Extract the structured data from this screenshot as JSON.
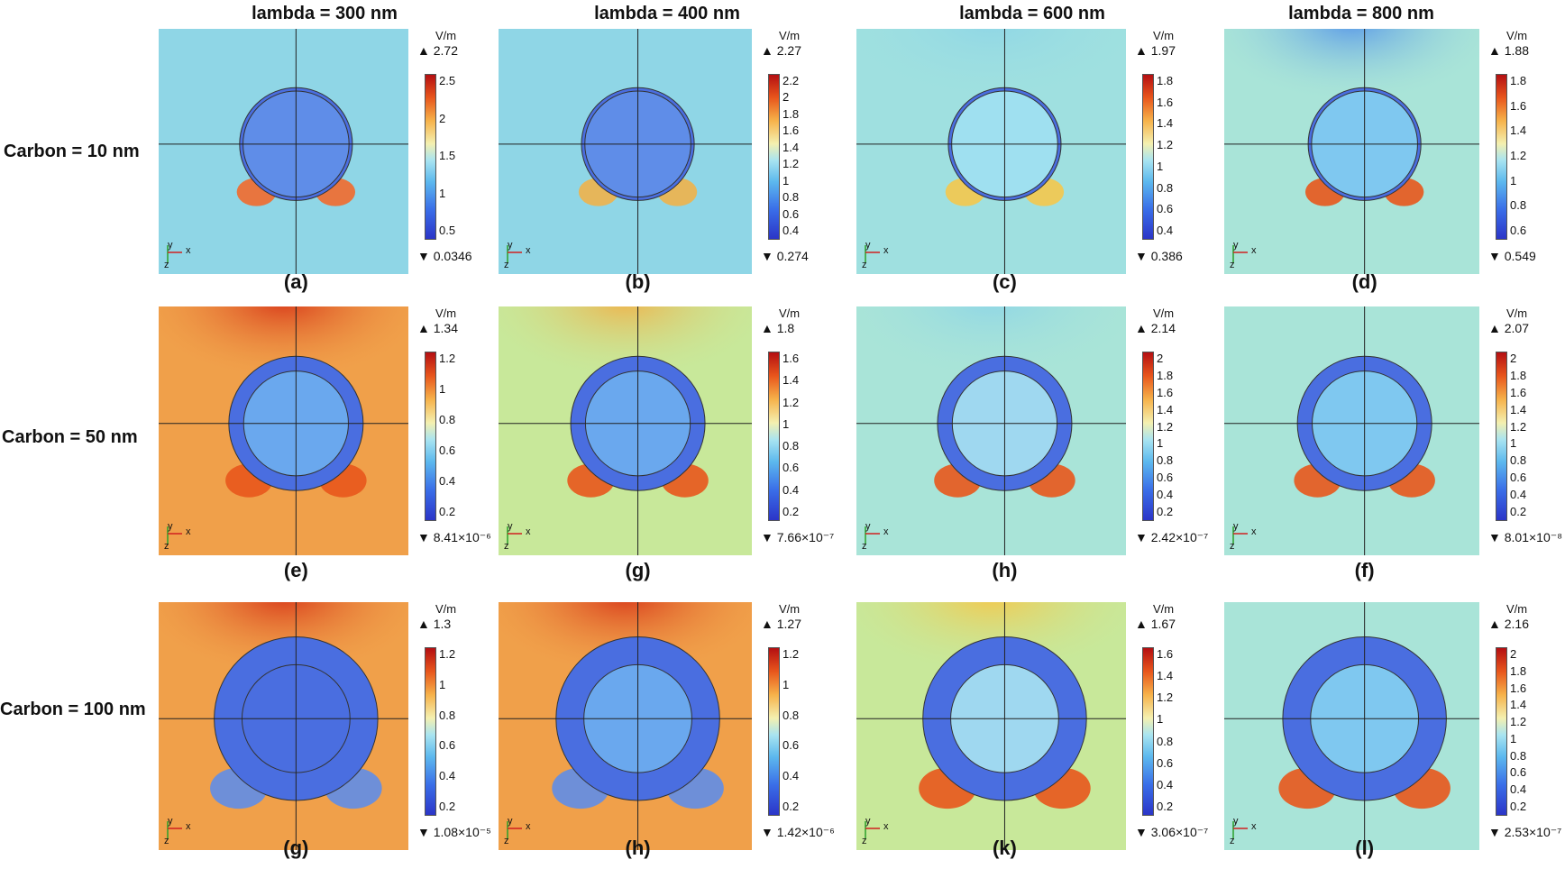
{
  "columns": [
    "lambda = 300 nm",
    "lambda = 400 nm",
    "lambda = 600 nm",
    "lambda = 800 nm"
  ],
  "rows": [
    "Carbon = 10 nm",
    "Carbon = 50 nm",
    "Carbon = 100 nm"
  ],
  "unit": "V/m",
  "axes": {
    "y": "y",
    "x": "x",
    "z": "z"
  },
  "panels": [
    {
      "caption": "(a)",
      "max": "2.72",
      "min": "0.0346",
      "ticks": [
        "2.5",
        "2",
        "1.5",
        "1",
        "0.5"
      ],
      "bg": "#8fd6e6",
      "top_color": "#8fd6e6",
      "spot_color": "#f26a2c",
      "inner_color": "#5f8de8",
      "shell": "thin"
    },
    {
      "caption": "(b)",
      "max": "2.27",
      "min": "0.274",
      "ticks": [
        "2.2",
        "2",
        "1.8",
        "1.6",
        "1.4",
        "1.2",
        "1",
        "0.8",
        "0.6",
        "0.4"
      ],
      "bg": "#8fd6e6",
      "top_color": "#8fd6e6",
      "spot_color": "#f0b24a",
      "inner_color": "#5f8de8",
      "shell": "thin"
    },
    {
      "caption": "(c)",
      "max": "1.97",
      "min": "0.386",
      "ticks": [
        "1.8",
        "1.6",
        "1.4",
        "1.2",
        "1",
        "0.8",
        "0.6",
        "0.4"
      ],
      "bg": "#9fe0e0",
      "top_color": "#8fd6e6",
      "spot_color": "#f4c84c",
      "inner_color": "#9fe0f0",
      "shell": "thin"
    },
    {
      "caption": "(d)",
      "max": "1.88",
      "min": "0.549",
      "ticks": [
        "1.8",
        "1.6",
        "1.4",
        "1.2",
        "1",
        "0.8",
        "0.6"
      ],
      "bg": "#a9e4d8",
      "top_color": "#5b9ae8",
      "spot_color": "#e8561c",
      "inner_color": "#7fc8f0",
      "shell": "thin"
    },
    {
      "caption": "(e)",
      "max": "1.34",
      "min": "8.41×10⁻⁶",
      "ticks": [
        "1.2",
        "1",
        "0.8",
        "0.6",
        "0.4",
        "0.2"
      ],
      "bg": "#f0a04a",
      "top_color": "#d83a1a",
      "spot_color": "#e8561c",
      "inner_color": "#6aa8ee",
      "shell": "mid"
    },
    {
      "caption": "(g)",
      "max": "1.8",
      "min": "7.66×10⁻⁷",
      "ticks": [
        "1.6",
        "1.4",
        "1.2",
        "1",
        "0.8",
        "0.6",
        "0.4",
        "0.2"
      ],
      "bg": "#c8e89a",
      "top_color": "#f0b24a",
      "spot_color": "#e8561c",
      "inner_color": "#6aa8ee",
      "shell": "mid"
    },
    {
      "caption": "(h)",
      "max": "2.14",
      "min": "2.42×10⁻⁷",
      "ticks": [
        "2",
        "1.8",
        "1.6",
        "1.4",
        "1.2",
        "1",
        "0.8",
        "0.6",
        "0.4",
        "0.2"
      ],
      "bg": "#a9e4d8",
      "top_color": "#8fd6e6",
      "spot_color": "#e8561c",
      "inner_color": "#9fd8f0",
      "shell": "mid"
    },
    {
      "caption": "(f)",
      "max": "2.07",
      "min": "8.01×10⁻⁸",
      "ticks": [
        "2",
        "1.8",
        "1.6",
        "1.4",
        "1.2",
        "1",
        "0.8",
        "0.6",
        "0.4",
        "0.2"
      ],
      "bg": "#a9e4d8",
      "top_color": "#a9e4d8",
      "spot_color": "#e8561c",
      "inner_color": "#7fc8f0",
      "shell": "mid"
    },
    {
      "caption": "(g)",
      "max": "1.3",
      "min": "1.08×10⁻⁵",
      "ticks": [
        "1.2",
        "1",
        "0.8",
        "0.6",
        "0.4",
        "0.2"
      ],
      "bg": "#f0a04a",
      "top_color": "#d83a1a",
      "spot_color": "#5f8de8",
      "inner_color": "#4a6ee0",
      "shell": "thick"
    },
    {
      "caption": "(h)",
      "max": "1.27",
      "min": "1.42×10⁻⁶",
      "ticks": [
        "1.2",
        "1",
        "0.8",
        "0.6",
        "0.4",
        "0.2"
      ],
      "bg": "#f0a04a",
      "top_color": "#d83a1a",
      "spot_color": "#5f8de8",
      "inner_color": "#6aa8ee",
      "shell": "thick"
    },
    {
      "caption": "(k)",
      "max": "1.67",
      "min": "3.06×10⁻⁷",
      "ticks": [
        "1.6",
        "1.4",
        "1.2",
        "1",
        "0.8",
        "0.6",
        "0.4",
        "0.2"
      ],
      "bg": "#c8e89a",
      "top_color": "#f4c84c",
      "spot_color": "#e8561c",
      "inner_color": "#9fd8f0",
      "shell": "thick"
    },
    {
      "caption": "(l)",
      "max": "2.16",
      "min": "2.53×10⁻⁷",
      "ticks": [
        "2",
        "1.8",
        "1.6",
        "1.4",
        "1.2",
        "1",
        "0.8",
        "0.6",
        "0.4",
        "0.2"
      ],
      "bg": "#a9e4d8",
      "top_color": "#a9e4d8",
      "spot_color": "#e8561c",
      "inner_color": "#7fc8f0",
      "shell": "thick"
    }
  ]
}
